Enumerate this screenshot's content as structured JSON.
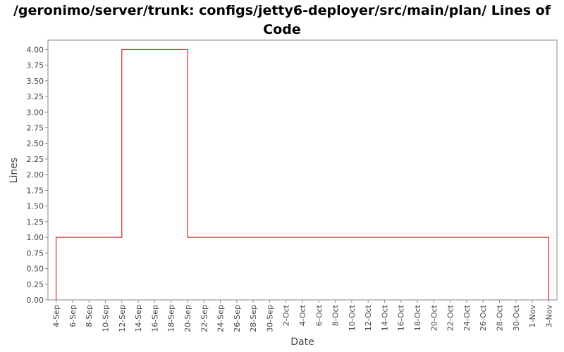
{
  "chart_data": {
    "type": "line",
    "line_style": "step",
    "title": "/geronimo/server/trunk: configs/jetty6-deployer/src/main/plan/ Lines of Code",
    "xlabel": "Date",
    "ylabel": "Lines",
    "xlim": [
      "2007-09-03",
      "2007-11-04"
    ],
    "ylim": [
      0,
      4.15
    ],
    "grid": false,
    "x_tick_labels": [
      "4-Sep",
      "6-Sep",
      "8-Sep",
      "10-Sep",
      "12-Sep",
      "14-Sep",
      "16-Sep",
      "18-Sep",
      "20-Sep",
      "22-Sep",
      "24-Sep",
      "26-Sep",
      "28-Sep",
      "30-Sep",
      "2-Oct",
      "4-Oct",
      "6-Oct",
      "8-Oct",
      "10-Oct",
      "12-Oct",
      "14-Oct",
      "16-Oct",
      "18-Oct",
      "20-Oct",
      "22-Oct",
      "24-Oct",
      "26-Oct",
      "28-Oct",
      "30-Oct",
      "1-Nov",
      "3-Nov"
    ],
    "y_ticks": [
      0,
      0.25,
      0.5,
      0.75,
      1,
      1.25,
      1.5,
      1.75,
      2,
      2.25,
      2.5,
      2.75,
      3,
      3.25,
      3.5,
      3.75,
      4
    ],
    "y_tick_labels": [
      "0.00",
      "0.25",
      "0.50",
      "0.75",
      "1.00",
      "1.25",
      "1.50",
      "1.75",
      "2.00",
      "2.25",
      "2.50",
      "2.75",
      "3.00",
      "3.25",
      "3.50",
      "3.75",
      "4.00"
    ],
    "series": [
      {
        "color": "#cc0000",
        "x": [
          "2007-09-04",
          "2007-09-12",
          "2007-09-20",
          "2007-11-03"
        ],
        "y": [
          1,
          4,
          1,
          1
        ]
      }
    ]
  }
}
